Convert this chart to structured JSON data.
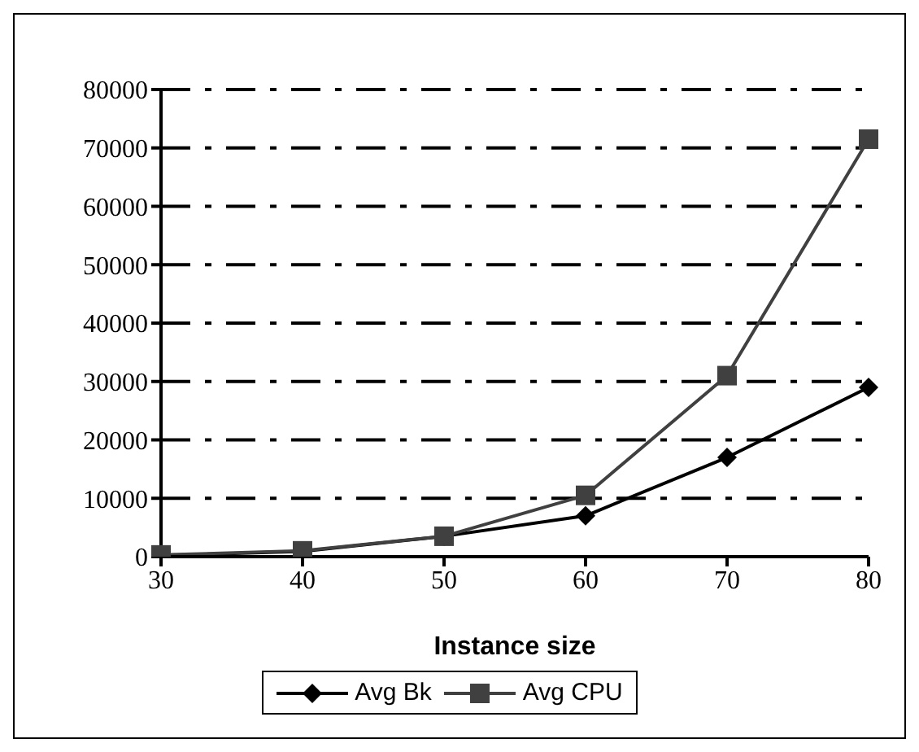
{
  "chart_data": {
    "type": "line",
    "xlabel": "Instance size",
    "categories": [
      "30",
      "40",
      "50",
      "60",
      "70",
      "80"
    ],
    "series": [
      {
        "name": "Avg Bk",
        "color": "#000000",
        "marker": "diamond",
        "values": [
          200,
          900,
          3500,
          7000,
          17000,
          29000
        ]
      },
      {
        "name": "Avg CPU",
        "color": "#404040",
        "marker": "square",
        "values": [
          300,
          1000,
          3500,
          10500,
          31000,
          71500
        ]
      }
    ],
    "ylim": [
      0,
      80000
    ],
    "yticks": [
      0,
      10000,
      20000,
      30000,
      40000,
      50000,
      60000,
      70000,
      80000
    ],
    "grid": "y",
    "legend": "bottom",
    "line_style": "solid"
  }
}
